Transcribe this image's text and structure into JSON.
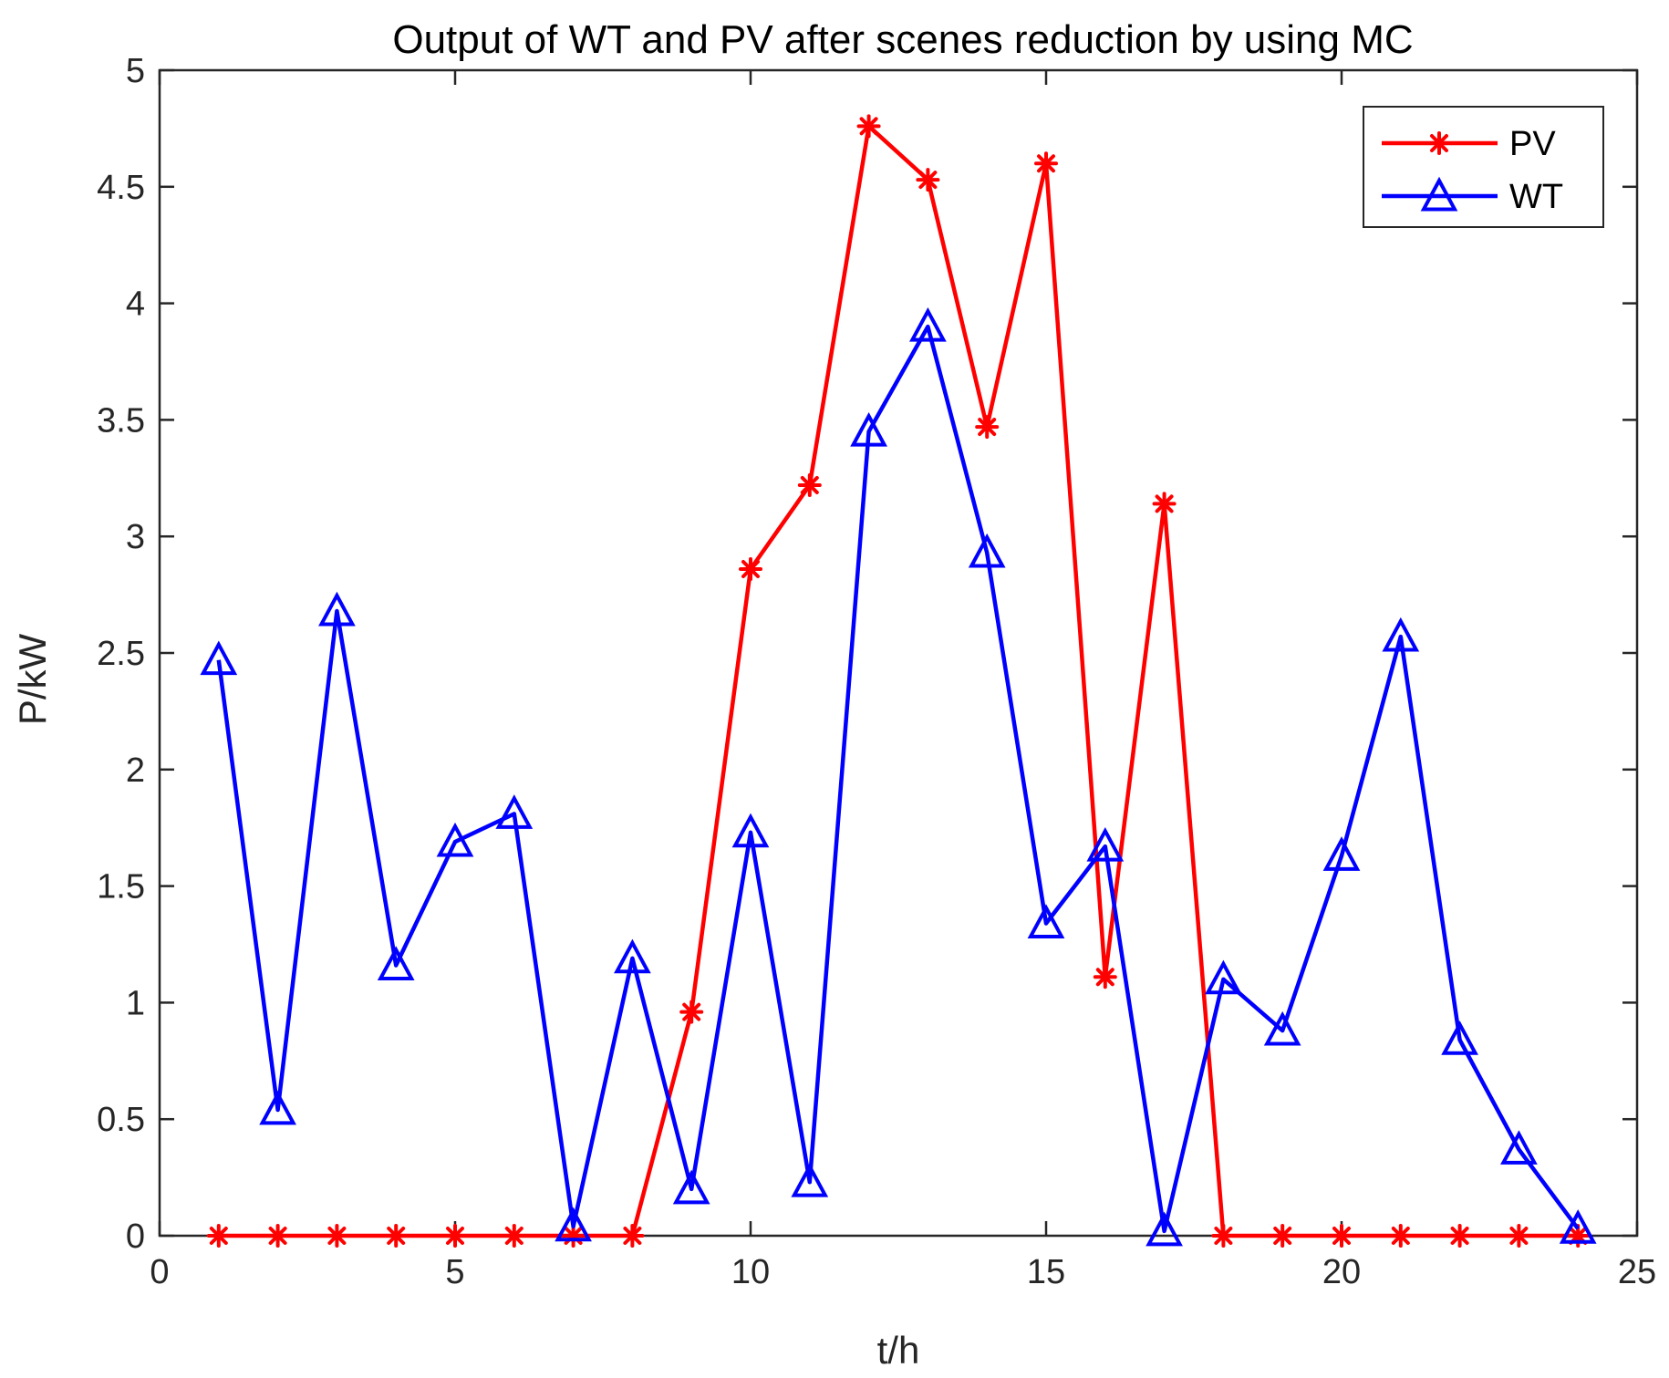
{
  "chart_data": {
    "type": "line",
    "title": "Output of WT and PV after scenes reduction by using MC",
    "xlabel": "t/h",
    "ylabel": "P/kW",
    "xlim": [
      0,
      25
    ],
    "ylim": [
      0,
      5
    ],
    "xticks": [
      0,
      5,
      10,
      15,
      20,
      25
    ],
    "xtick_labels": [
      "0",
      "5",
      "10",
      "15",
      "20",
      "25"
    ],
    "yticks": [
      0,
      0.5,
      1,
      1.5,
      2,
      2.5,
      3,
      3.5,
      4,
      4.5,
      5
    ],
    "ytick_labels": [
      "0",
      "0.5",
      "1",
      "1.5",
      "2",
      "2.5",
      "3",
      "3.5",
      "4",
      "4.5",
      "5"
    ],
    "grid": false,
    "legend_position": "top-right",
    "x": [
      1,
      2,
      3,
      4,
      5,
      6,
      7,
      8,
      9,
      10,
      11,
      12,
      13,
      14,
      15,
      16,
      17,
      18,
      19,
      20,
      21,
      22,
      23,
      24
    ],
    "series": [
      {
        "name": "PV",
        "color": "#ff0000",
        "marker": "asterisk",
        "values": [
          0,
          0,
          0,
          0,
          0,
          0,
          0,
          0,
          0.96,
          2.86,
          3.22,
          4.76,
          4.53,
          3.47,
          4.6,
          1.11,
          3.14,
          0,
          0,
          0,
          0,
          0,
          0,
          0
        ]
      },
      {
        "name": "WT",
        "color": "#0000ff",
        "marker": "triangle",
        "values": [
          2.47,
          0.54,
          2.68,
          1.16,
          1.69,
          1.81,
          0.04,
          1.19,
          0.2,
          1.73,
          0.23,
          3.45,
          3.9,
          2.93,
          1.34,
          1.67,
          0.02,
          1.1,
          0.88,
          1.63,
          2.57,
          0.84,
          0.37,
          0.03
        ]
      }
    ]
  }
}
